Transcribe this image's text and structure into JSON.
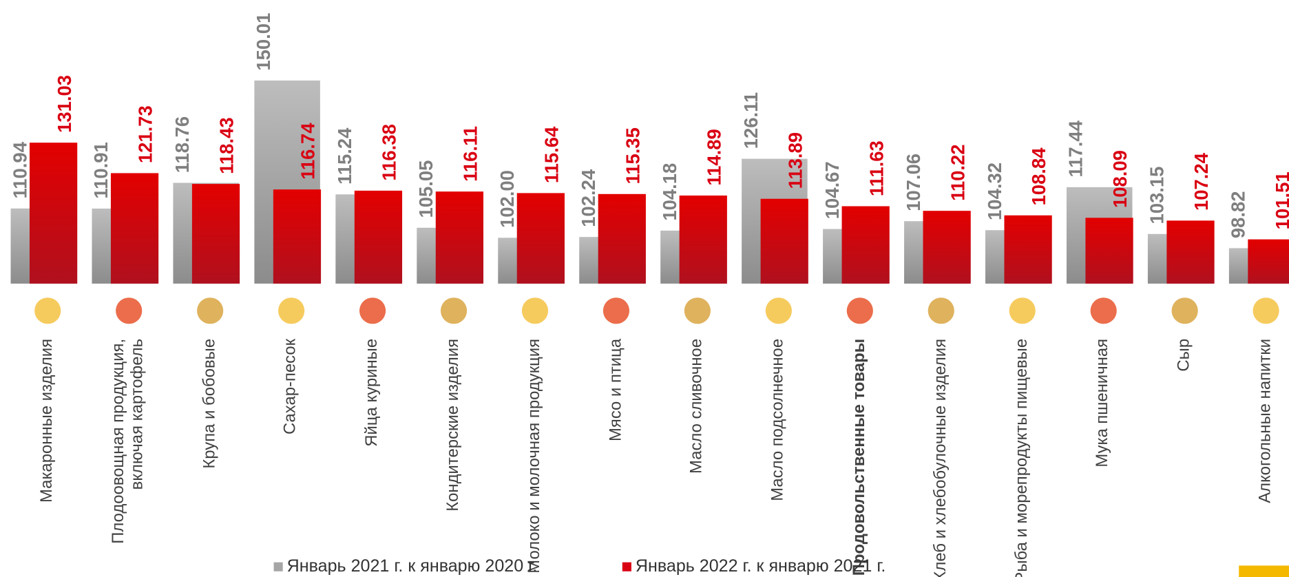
{
  "chart_data": {
    "type": "bar",
    "categories": [
      "Макаронные изделия",
      "Плодоовощная продукция, включая картофель",
      "Крупа и бобовые",
      "Сахар-песок",
      "Яйца куриные",
      "Кондитерские изделия",
      "Молоко и молочная продукция",
      "Мясо и птица",
      "Масло сливочное",
      "Масло подсолнечное",
      "Продовольственные товары",
      "Хлеб и хлебобулочные изделия",
      "Рыба и морепродукты пищевые",
      "Мука пшеничная",
      "Сыр",
      "Алкогольные напитки"
    ],
    "bold_categories": [
      10
    ],
    "series": [
      {
        "name": "Январь 2021 г. к январю 2020 г.",
        "color": "#a6a6a6",
        "values": [
          110.94,
          110.91,
          118.76,
          150.01,
          115.24,
          105.05,
          102,
          102.24,
          104.18,
          126.11,
          104.67,
          107.06,
          104.32,
          117.44,
          103.15,
          98.82
        ],
        "value_labels": [
          "110.94",
          "110.91",
          "118.76",
          "150.01",
          "115.24",
          "105.05",
          "102.00",
          "102.24",
          "104.18",
          "126.11",
          "104.67",
          "107.06",
          "104.32",
          "117.44",
          "103.15",
          "98.82"
        ]
      },
      {
        "name": "Январь 2022 г. к январю 2021 г.",
        "color": "#d90012",
        "values": [
          131.03,
          121.73,
          118.43,
          116.74,
          116.38,
          116.11,
          115.64,
          115.35,
          114.89,
          113.89,
          111.63,
          110.22,
          108.84,
          108.09,
          107.24,
          101.51
        ],
        "value_labels": [
          "131.03",
          "121.73",
          "118.43",
          "116.74",
          "116.38",
          "116.11",
          "115.64",
          "115.35",
          "114.89",
          "113.89",
          "111.63",
          "110.22",
          "108.84",
          "108.09",
          "107.24",
          "101.51"
        ]
      }
    ],
    "ylim": [
      88,
      152
    ],
    "legend": "bottom"
  }
}
